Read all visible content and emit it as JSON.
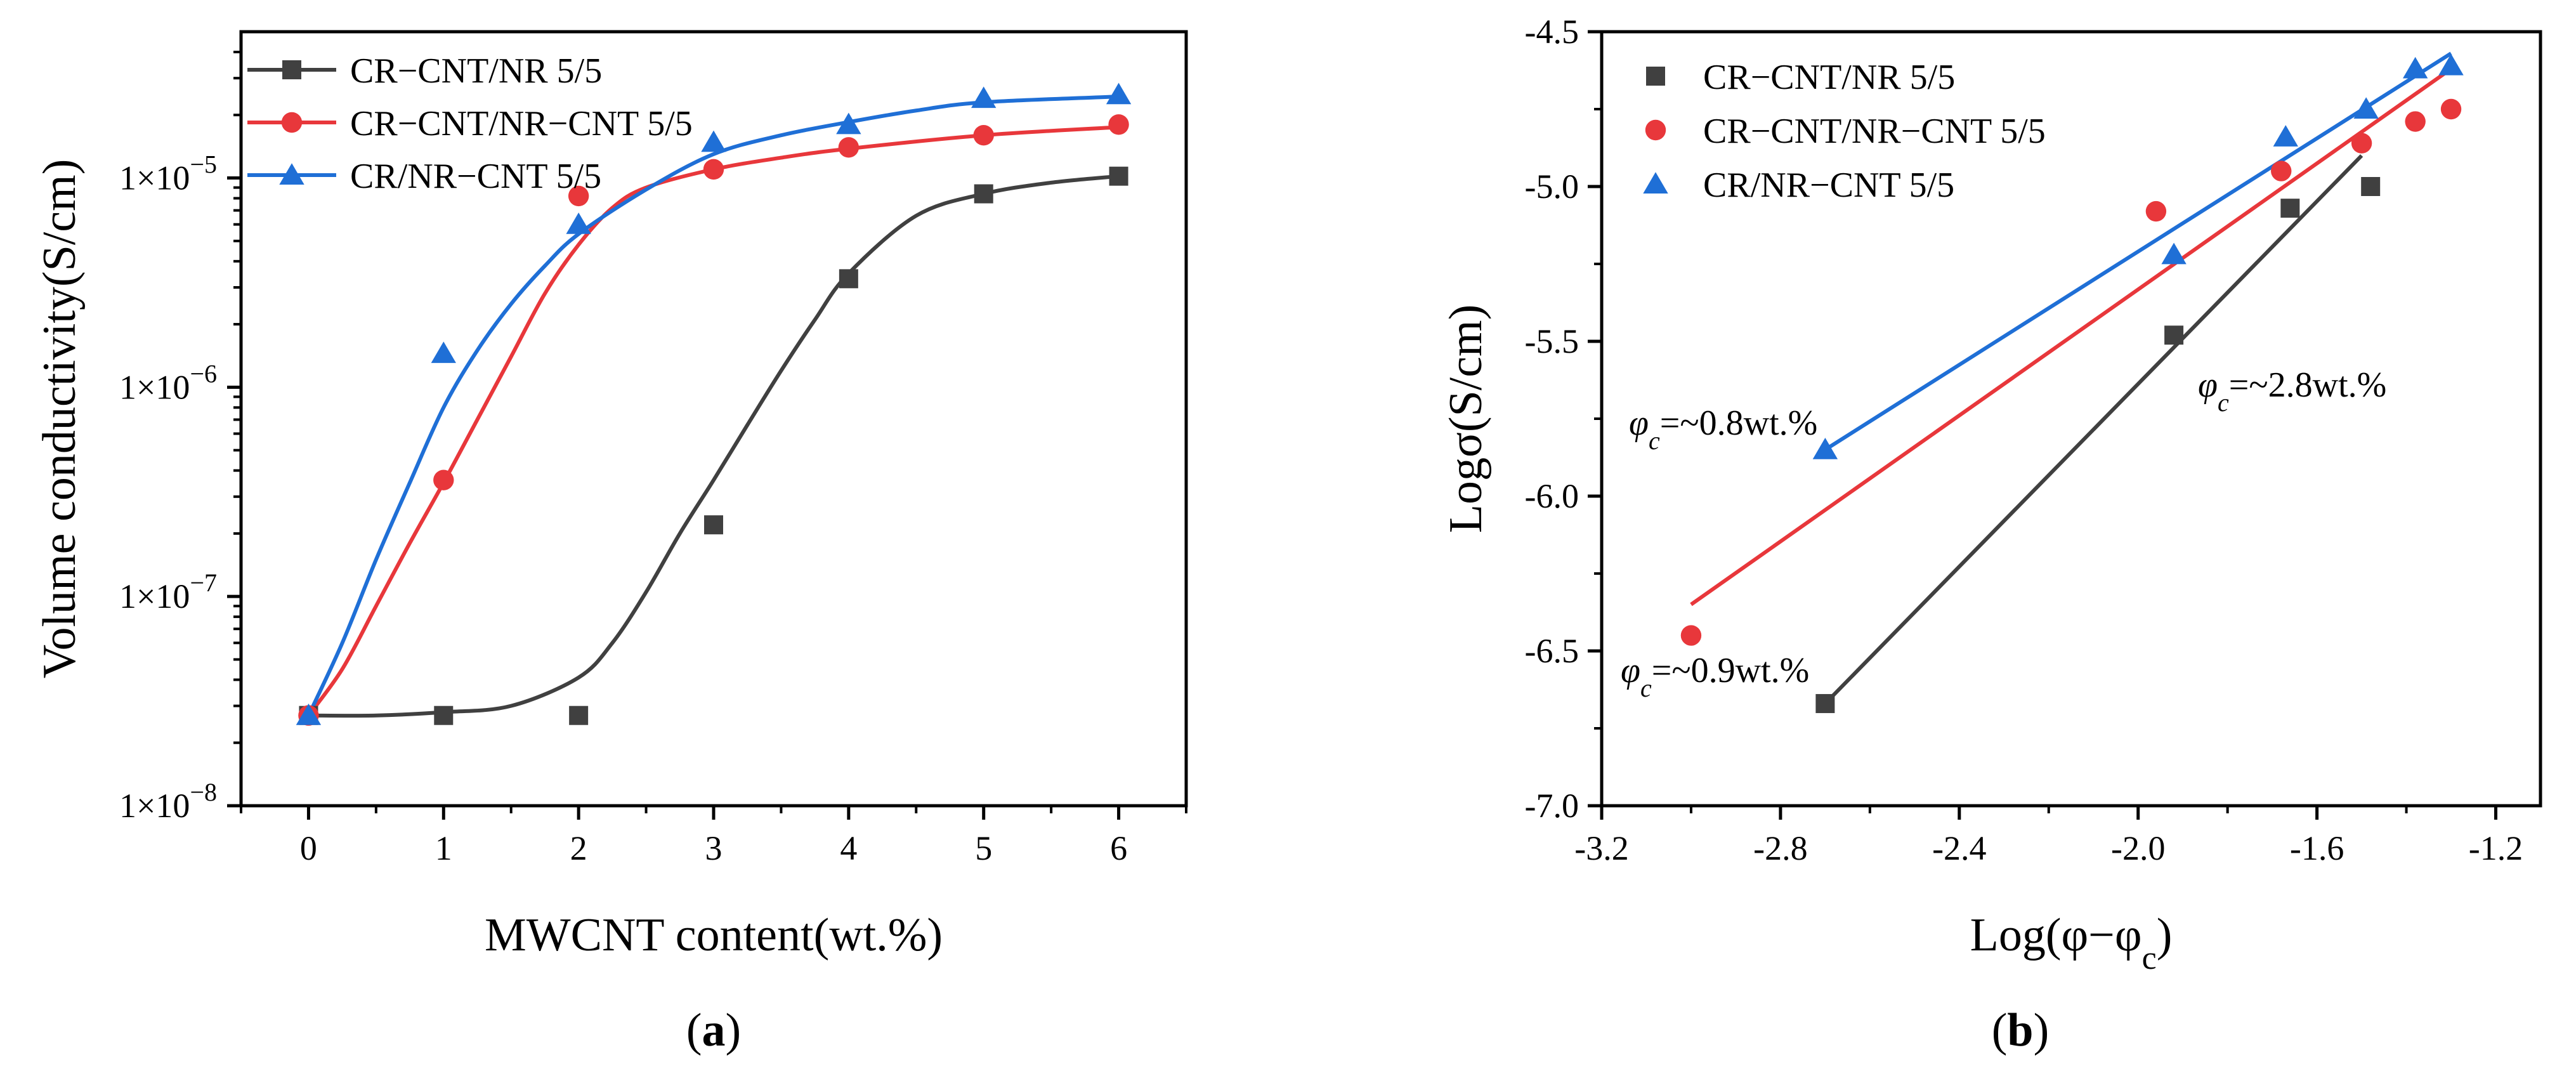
{
  "colors": {
    "black_series": "#404040",
    "red_series": "#e8373b",
    "blue_series": "#1f6fd6",
    "axis": "#000000"
  },
  "chart_data": [
    {
      "type": "scatter",
      "panel": "a",
      "panel_label": {
        "open": "(",
        "letter": "a",
        "close": ")"
      },
      "xlabel": "MWCNT content(wt.%)",
      "ylabel": "Volume conductivity(S/cm)",
      "xscale": "linear",
      "yscale": "log",
      "xlim": [
        -0.5,
        6.5
      ],
      "ylim": [
        1e-08,
        5e-05
      ],
      "xticks": [
        0,
        1,
        2,
        3,
        4,
        5,
        6
      ],
      "xtick_labels": [
        "0",
        "1",
        "2",
        "3",
        "4",
        "5",
        "6"
      ],
      "yticks": [
        1e-08,
        1e-07,
        1e-06,
        1e-05
      ],
      "ytick_labels": [
        {
          "base": "1×10",
          "exp": "−8"
        },
        {
          "base": "1×10",
          "exp": "−7"
        },
        {
          "base": "1×10",
          "exp": "−6"
        },
        {
          "base": "1×10",
          "exp": "−5"
        }
      ],
      "legend_position": "top-left",
      "series": [
        {
          "name": "CR−CNT/NR 5/5",
          "color": "#404040",
          "marker": "square",
          "x": [
            0,
            1,
            2,
            3,
            4,
            5,
            6
          ],
          "y": [
            2.7e-08,
            2.7e-08,
            2.7e-08,
            2.2e-07,
            3.3e-06,
            8.4e-06,
            1.02e-05
          ],
          "fit_type": "sigmoid",
          "fit_x": [
            0,
            0.5,
            1,
            1.5,
            2,
            2.25,
            2.5,
            2.75,
            3,
            3.25,
            3.5,
            3.75,
            4,
            4.5,
            5,
            5.5,
            6
          ],
          "fit_y": [
            2.7e-08,
            2.7e-08,
            2.8e-08,
            3e-08,
            4.1e-08,
            6e-08,
            1.05e-07,
            2e-07,
            3.6e-07,
            6.6e-07,
            1.2e-06,
            2.1e-06,
            3.5e-06,
            6.6e-06,
            8.4e-06,
            9.5e-06,
            1.02e-05
          ]
        },
        {
          "name": "CR−CNT/NR−CNT 5/5",
          "color": "#e8373b",
          "marker": "circle",
          "x": [
            0,
            1,
            2,
            3,
            4,
            5,
            6
          ],
          "y": [
            2.7e-08,
            3.6e-07,
            8.2e-06,
            1.1e-05,
            1.4e-05,
            1.6e-05,
            1.8e-05
          ],
          "fit_type": "sigmoid",
          "fit_x": [
            0,
            0.25,
            0.5,
            0.75,
            1,
            1.25,
            1.5,
            1.75,
            2,
            2.25,
            2.5,
            3,
            3.5,
            4,
            5,
            6
          ],
          "fit_y": [
            2.7e-08,
            4.5e-08,
            9e-08,
            1.8e-07,
            3.5e-07,
            7e-07,
            1.4e-06,
            2.8e-06,
            4.8e-06,
            7.2e-06,
            9e-06,
            1.1e-05,
            1.25e-05,
            1.38e-05,
            1.6e-05,
            1.75e-05
          ]
        },
        {
          "name": "CR/NR−CNT 5/5",
          "color": "#1f6fd6",
          "marker": "triangle",
          "x": [
            0,
            1,
            2,
            3,
            4,
            5,
            6
          ],
          "y": [
            2.7e-08,
            1.45e-06,
            6e-06,
            1.48e-05,
            1.8e-05,
            2.4e-05,
            2.5e-05
          ],
          "fit_type": "sigmoid",
          "fit_x": [
            0,
            0.25,
            0.5,
            0.75,
            1,
            1.25,
            1.5,
            1.75,
            2,
            2.5,
            3,
            3.5,
            4,
            4.5,
            5,
            6
          ],
          "fit_y": [
            2.7e-08,
            6e-08,
            1.5e-07,
            3.5e-07,
            8e-07,
            1.5e-06,
            2.5e-06,
            3.8e-06,
            5.4e-06,
            8.8e-06,
            1.3e-05,
            1.6e-05,
            1.85e-05,
            2.1e-05,
            2.3e-05,
            2.45e-05
          ]
        }
      ]
    },
    {
      "type": "scatter",
      "panel": "b",
      "panel_label": {
        "open": "(",
        "letter": "b",
        "close": ")"
      },
      "xlabel": "Log(φ−φc)",
      "xlabel_parts": {
        "prefix": "Log(φ−φ",
        "sub": "c",
        "suffix": ")"
      },
      "ylabel": "Logσ(S/cm)",
      "xscale": "linear",
      "yscale": "linear",
      "xlim": [
        -3.2,
        -1.1
      ],
      "ylim": [
        -7.0,
        -4.5
      ],
      "xticks": [
        -3.2,
        -2.8,
        -2.4,
        -2.0,
        -1.6,
        -1.2
      ],
      "xtick_labels": [
        "-3.2",
        "-2.8",
        "-2.4",
        "-2.0",
        "-1.6",
        "-1.2"
      ],
      "yticks": [
        -7.0,
        -6.5,
        -6.0,
        -5.5,
        -5.0,
        -4.5
      ],
      "ytick_labels": [
        "-7.0",
        "-6.5",
        "-6.0",
        "-5.5",
        "-5.0",
        "-4.5"
      ],
      "legend_position": "top-left",
      "series": [
        {
          "name": "CR−CNT/NR 5/5",
          "color": "#404040",
          "marker": "square",
          "x": [
            -2.7,
            -1.92,
            -1.66,
            -1.48
          ],
          "y": [
            -6.67,
            -5.48,
            -5.07,
            -5.0
          ],
          "fit_line": [
            [
              -2.7,
              -6.67
            ],
            [
              -1.5,
              -4.9
            ]
          ]
        },
        {
          "name": "CR−CNT/NR−CNT 5/5",
          "color": "#e8373b",
          "marker": "circle",
          "x": [
            -3.0,
            -1.96,
            -1.68,
            -1.5,
            -1.38,
            -1.3
          ],
          "y": [
            -6.45,
            -5.08,
            -4.95,
            -4.86,
            -4.79,
            -4.75
          ],
          "fit_line": [
            [
              -3.0,
              -6.35
            ],
            [
              -1.3,
              -4.62
            ]
          ]
        },
        {
          "name": "CR/NR−CNT 5/5",
          "color": "#1f6fd6",
          "marker": "triangle",
          "x": [
            -2.7,
            -1.92,
            -1.67,
            -1.49,
            -1.38,
            -1.3
          ],
          "y": [
            -5.85,
            -5.22,
            -4.84,
            -4.75,
            -4.62,
            -4.61
          ],
          "fit_line": [
            [
              -2.7,
              -5.85
            ],
            [
              -1.3,
              -4.57
            ]
          ]
        }
      ],
      "annotations": [
        {
          "color": "#1f6fd6",
          "sym": "φ",
          "sub": "c",
          "text": "=~0.8wt.%"
        },
        {
          "color": "#404040",
          "sym": "φ",
          "sub": "c",
          "text": "=~2.8wt.%"
        },
        {
          "color": "#e8373b",
          "sym": "φ",
          "sub": "c",
          "text": "=~0.9wt.%"
        }
      ]
    }
  ]
}
